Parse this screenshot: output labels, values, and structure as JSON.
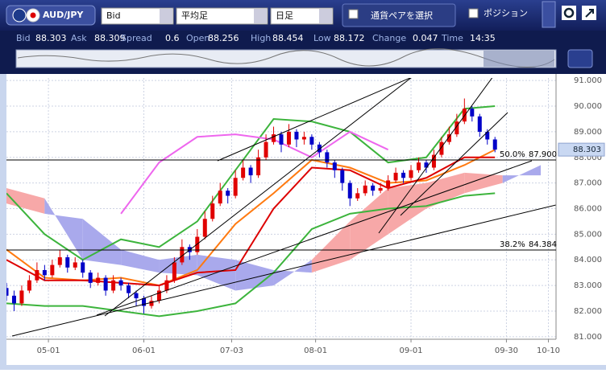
{
  "toolbar": {
    "pair": "AUD/JPY",
    "price_type": "Bid",
    "candle_type": "平均足",
    "timeframe": "日足",
    "select_pair": "通貨ペアを選択",
    "position": "ポジション"
  },
  "quote": [
    {
      "label": "Bid",
      "value": 88.303
    },
    {
      "label": "Ask",
      "value": 88.309
    },
    {
      "label": "Spread",
      "value": 0.6
    },
    {
      "label": "Open",
      "value": 88.256
    },
    {
      "label": "High",
      "value": 88.454
    },
    {
      "label": "Low",
      "value": 88.172
    },
    {
      "label": "Change",
      "value": 0.047
    },
    {
      "label": "Time",
      "value": "14:35"
    }
  ],
  "chart_data": {
    "type": "candlestick",
    "ylim": [
      80.9,
      91.1
    ],
    "yticks": [
      {
        "value": 91,
        "label": "91.000"
      },
      {
        "value": 90,
        "label": "90.000"
      },
      {
        "value": 89,
        "label": "89.000"
      },
      {
        "value": 88,
        "label": "88.000"
      },
      {
        "value": 87,
        "label": "87.000"
      },
      {
        "value": 86,
        "label": "86.000"
      },
      {
        "value": 85,
        "label": "85.000"
      },
      {
        "value": 84,
        "label": "84.000"
      },
      {
        "value": 83,
        "label": "83.000"
      },
      {
        "value": 82,
        "label": "82.000"
      },
      {
        "value": 81,
        "label": "81.000"
      }
    ],
    "xlim": [
      0,
      144
    ],
    "xticks": [
      {
        "value": 11,
        "label": "05-01"
      },
      {
        "value": 36,
        "label": "06-01"
      },
      {
        "value": 59,
        "label": "07-03"
      },
      {
        "value": 81,
        "label": "08-01"
      },
      {
        "value": 106,
        "label": "09-01"
      },
      {
        "value": 131,
        "label": "09-30"
      },
      {
        "value": 142,
        "label": "10-10"
      }
    ],
    "grid": true,
    "up_color": "#e00000",
    "down_color": "#0000c8",
    "candles": [
      [
        0,
        82.9,
        83.1,
        82.4,
        82.6
      ],
      [
        2,
        82.6,
        82.8,
        82.0,
        82.3
      ],
      [
        4,
        82.3,
        83.0,
        82.2,
        82.8
      ],
      [
        6,
        82.8,
        83.4,
        82.7,
        83.2
      ],
      [
        8,
        83.2,
        83.9,
        83.1,
        83.6
      ],
      [
        10,
        83.6,
        83.8,
        83.2,
        83.4
      ],
      [
        12,
        83.4,
        84.0,
        83.3,
        83.8
      ],
      [
        14,
        83.8,
        84.4,
        83.7,
        84.1
      ],
      [
        16,
        84.1,
        84.2,
        83.5,
        83.7
      ],
      [
        18,
        83.7,
        84.1,
        83.6,
        83.9
      ],
      [
        20,
        83.9,
        84.0,
        83.3,
        83.5
      ],
      [
        22,
        83.5,
        83.6,
        82.9,
        83.1
      ],
      [
        24,
        83.1,
        83.5,
        83.0,
        83.3
      ],
      [
        26,
        83.3,
        83.4,
        82.6,
        82.8
      ],
      [
        28,
        82.8,
        83.4,
        82.7,
        83.2
      ],
      [
        30,
        83.2,
        83.3,
        82.8,
        83.0
      ],
      [
        32,
        83.0,
        83.1,
        82.5,
        82.7
      ],
      [
        34,
        82.7,
        82.8,
        82.2,
        82.5
      ],
      [
        36,
        82.5,
        82.6,
        81.9,
        82.2
      ],
      [
        38,
        82.2,
        82.6,
        82.1,
        82.4
      ],
      [
        40,
        82.4,
        83.0,
        82.3,
        82.8
      ],
      [
        42,
        82.8,
        83.4,
        82.7,
        83.2
      ],
      [
        44,
        83.2,
        84.1,
        83.1,
        83.9
      ],
      [
        46,
        83.9,
        84.8,
        83.8,
        84.5
      ],
      [
        48,
        84.5,
        84.6,
        84.0,
        84.3
      ],
      [
        50,
        84.3,
        85.2,
        84.2,
        84.9
      ],
      [
        52,
        84.9,
        85.9,
        84.8,
        85.6
      ],
      [
        54,
        85.6,
        86.5,
        85.5,
        86.2
      ],
      [
        56,
        86.2,
        87.0,
        86.1,
        86.7
      ],
      [
        58,
        86.7,
        86.8,
        86.2,
        86.5
      ],
      [
        60,
        86.5,
        87.5,
        86.4,
        87.2
      ],
      [
        62,
        87.2,
        87.9,
        87.1,
        87.6
      ],
      [
        64,
        87.6,
        87.7,
        87.0,
        87.3
      ],
      [
        66,
        87.3,
        88.3,
        87.2,
        88.0
      ],
      [
        68,
        88.0,
        88.9,
        87.9,
        88.6
      ],
      [
        70,
        88.6,
        89.2,
        88.5,
        88.9
      ],
      [
        72,
        88.9,
        89.0,
        88.2,
        88.5
      ],
      [
        74,
        88.5,
        89.3,
        88.4,
        89.0
      ],
      [
        76,
        89.0,
        89.1,
        88.4,
        88.7
      ],
      [
        78,
        88.7,
        89.0,
        88.5,
        88.8
      ],
      [
        80,
        88.8,
        88.9,
        88.3,
        88.5
      ],
      [
        82,
        88.5,
        88.6,
        88.0,
        88.2
      ],
      [
        84,
        88.2,
        88.3,
        87.6,
        87.8
      ],
      [
        86,
        87.8,
        87.9,
        87.2,
        87.5
      ],
      [
        88,
        87.5,
        87.6,
        86.7,
        87.0
      ],
      [
        90,
        87.0,
        87.1,
        86.1,
        86.4
      ],
      [
        92,
        86.4,
        86.8,
        86.3,
        86.6
      ],
      [
        94,
        86.6,
        87.1,
        86.5,
        86.9
      ],
      [
        96,
        86.9,
        87.0,
        86.5,
        86.7
      ],
      [
        98,
        86.7,
        87.0,
        86.6,
        86.8
      ],
      [
        100,
        86.8,
        87.3,
        86.7,
        87.1
      ],
      [
        102,
        87.1,
        87.6,
        87.0,
        87.4
      ],
      [
        104,
        87.4,
        87.5,
        87.0,
        87.2
      ],
      [
        106,
        87.2,
        87.7,
        87.1,
        87.5
      ],
      [
        108,
        87.5,
        88.0,
        87.4,
        87.8
      ],
      [
        110,
        87.8,
        87.9,
        87.4,
        87.6
      ],
      [
        112,
        87.6,
        88.3,
        87.5,
        88.1
      ],
      [
        114,
        88.1,
        88.8,
        88.0,
        88.6
      ],
      [
        116,
        88.6,
        89.2,
        88.5,
        88.9
      ],
      [
        118,
        88.9,
        89.7,
        88.8,
        89.4
      ],
      [
        120,
        89.4,
        90.3,
        89.3,
        89.9
      ],
      [
        122,
        89.9,
        90.0,
        89.4,
        89.6
      ],
      [
        124,
        89.6,
        89.7,
        88.8,
        89.0
      ],
      [
        126,
        89.0,
        89.1,
        88.5,
        88.7
      ],
      [
        128,
        88.7,
        88.8,
        88.2,
        88.303
      ]
    ],
    "cloud": {
      "x": [
        0,
        10,
        20,
        30,
        40,
        50,
        60,
        70,
        80,
        90,
        100,
        110,
        120,
        130,
        140
      ],
      "span_a": [
        86.8,
        86.4,
        84.0,
        83.8,
        83.5,
        83.4,
        82.8,
        83.0,
        84.0,
        85.5,
        86.8,
        87.0,
        87.4,
        87.3,
        87.3
      ],
      "span_b": [
        86.2,
        85.8,
        85.6,
        84.4,
        84.0,
        84.2,
        84.0,
        83.6,
        83.5,
        84.0,
        85.0,
        86.0,
        86.6,
        87.0,
        87.7
      ],
      "up_color": "#f7a8a8",
      "down_color": "#a9a9ec"
    },
    "line_x": [
      0,
      10,
      20,
      30,
      40,
      50,
      60,
      70,
      80,
      90,
      100,
      110,
      120,
      128
    ],
    "series": [
      {
        "color": "#3cb43c",
        "values": [
          86.6,
          85.0,
          84.0,
          84.8,
          84.5,
          85.5,
          87.5,
          89.5,
          89.4,
          89.0,
          87.8,
          88.0,
          89.9,
          90.0
        ]
      },
      {
        "color": "#3cb43c",
        "values": [
          82.3,
          82.2,
          82.2,
          82.0,
          81.8,
          82.0,
          82.3,
          83.5,
          85.2,
          85.8,
          86.0,
          86.1,
          86.5,
          86.6
        ]
      },
      {
        "color": "#ee66ee",
        "values": [
          null,
          null,
          null,
          85.8,
          87.8,
          88.8,
          88.9,
          88.7,
          88.0,
          89.0,
          88.3,
          null,
          null,
          null
        ]
      },
      {
        "color": "#ff7a10",
        "values": [
          84.4,
          83.3,
          83.2,
          83.3,
          83.0,
          83.6,
          85.4,
          86.6,
          87.9,
          87.6,
          87.0,
          87.1,
          87.7,
          88.3
        ]
      },
      {
        "color": "#dd0000",
        "values": [
          84.0,
          83.2,
          83.2,
          83.1,
          83.0,
          83.5,
          83.6,
          86.0,
          87.6,
          87.5,
          86.8,
          87.2,
          88.0,
          88.0
        ]
      }
    ],
    "levels": [
      {
        "label": "50.0%",
        "value": 87.9,
        "value_label": "87.900"
      },
      {
        "label": "38.2%",
        "value": 84.384,
        "value_label": "84.384"
      }
    ],
    "current_price": 88.303
  }
}
